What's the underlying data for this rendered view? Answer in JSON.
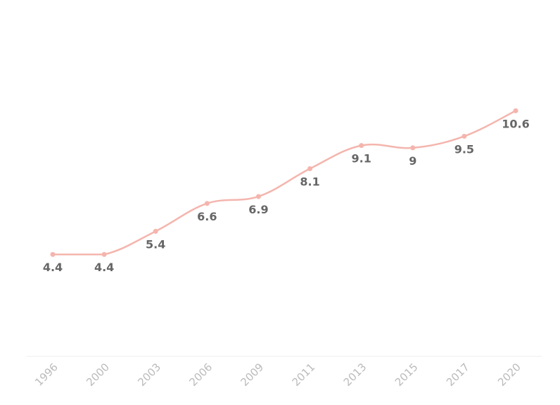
{
  "chart_data": {
    "type": "line",
    "title": "",
    "xlabel": "",
    "ylabel": "",
    "categories": [
      "1996",
      "2000",
      "2003",
      "2006",
      "2009",
      "2011",
      "2013",
      "2015",
      "2017",
      "2020"
    ],
    "series": [
      {
        "name": "",
        "values": [
          4.4,
          4.4,
          5.4,
          6.6,
          6.9,
          8.1,
          9.1,
          9,
          9.5,
          10.6
        ]
      }
    ],
    "data_labels": [
      "4.4",
      "4.4",
      "5.4",
      "6.6",
      "6.9",
      "8.1",
      "9.1",
      "9",
      "9.5",
      "10.6"
    ],
    "ylim": [
      0,
      15
    ],
    "grid": false,
    "legend": "none",
    "colors": {
      "line": "#f4b5ad",
      "marker": "#f4b5ad",
      "label": "#666666",
      "tick": "#bbbbbb",
      "axis": "#eeeeee"
    }
  }
}
